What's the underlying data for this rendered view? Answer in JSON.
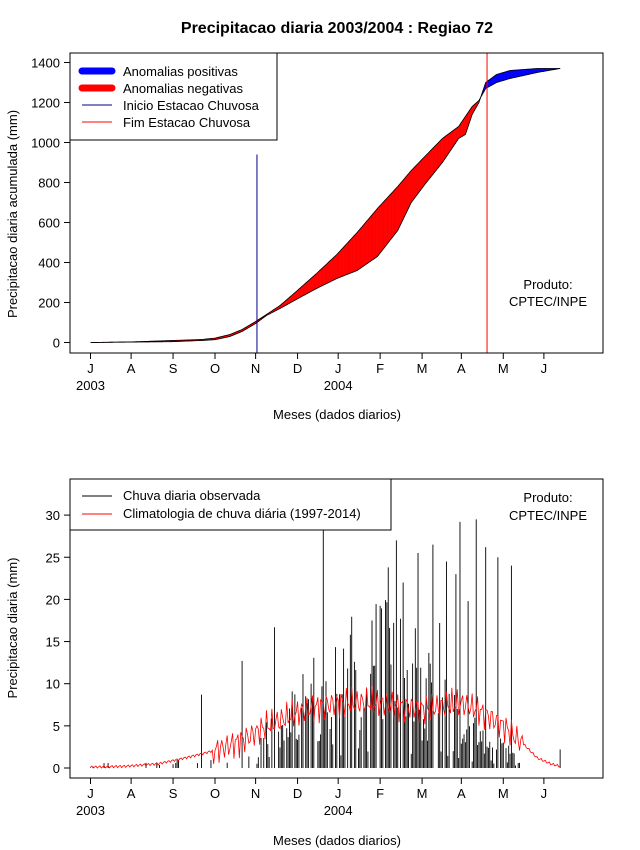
{
  "title": "Precipitacao diaria 2003/2004 : Regiao 72",
  "chart_data": [
    {
      "type": "area",
      "ylabel": "Precipitacao diaria acumulada (mm)",
      "xlabel": "Meses (dados diarios)",
      "ylim": [
        0,
        1400
      ],
      "yticks": [
        0,
        200,
        400,
        600,
        800,
        1000,
        1200,
        1400
      ],
      "month_ticks": [
        "J",
        "A",
        "S",
        "O",
        "N",
        "D",
        "J",
        "F",
        "M",
        "A",
        "M",
        "J"
      ],
      "year_labels": [
        "2003",
        "2004"
      ],
      "legend": [
        "Anomalias positivas",
        "Anomalias negativas",
        "Inicio Estacao Chuvosa",
        "Fim Estacao Chuvosa"
      ],
      "annotation": [
        "Produto:",
        "CPTEC/INPE"
      ],
      "onset_day": 123,
      "end_day": 293,
      "colors": {
        "positive": "#0000ff",
        "negative": "#ff0000",
        "onset_line": "#00008b",
        "end_line": "#ff0000"
      },
      "observed_anchors": [
        [
          0,
          0
        ],
        [
          30,
          2
        ],
        [
          60,
          4
        ],
        [
          82,
          10
        ],
        [
          92,
          14
        ],
        [
          103,
          30
        ],
        [
          112,
          55
        ],
        [
          122,
          95
        ],
        [
          130,
          135
        ],
        [
          140,
          170
        ],
        [
          152,
          215
        ],
        [
          167,
          270
        ],
        [
          182,
          320
        ],
        [
          197,
          360
        ],
        [
          212,
          430
        ],
        [
          227,
          560
        ],
        [
          237,
          700
        ],
        [
          247,
          790
        ],
        [
          260,
          900
        ],
        [
          272,
          1020
        ],
        [
          277,
          1040
        ],
        [
          282,
          1140
        ],
        [
          287,
          1200
        ],
        [
          292,
          1300
        ],
        [
          300,
          1340
        ],
        [
          310,
          1360
        ],
        [
          330,
          1370
        ],
        [
          347,
          1370
        ]
      ],
      "climatology_anchors": [
        [
          0,
          0
        ],
        [
          30,
          3
        ],
        [
          60,
          10
        ],
        [
          82,
          15
        ],
        [
          92,
          22
        ],
        [
          103,
          40
        ],
        [
          112,
          65
        ],
        [
          122,
          105
        ],
        [
          130,
          140
        ],
        [
          140,
          185
        ],
        [
          152,
          255
        ],
        [
          167,
          345
        ],
        [
          182,
          440
        ],
        [
          197,
          550
        ],
        [
          212,
          670
        ],
        [
          227,
          780
        ],
        [
          237,
          860
        ],
        [
          247,
          930
        ],
        [
          260,
          1020
        ],
        [
          272,
          1080
        ],
        [
          277,
          1130
        ],
        [
          282,
          1180
        ],
        [
          287,
          1210
        ],
        [
          292,
          1270
        ],
        [
          300,
          1300
        ],
        [
          310,
          1320
        ],
        [
          330,
          1350
        ],
        [
          347,
          1370
        ]
      ]
    },
    {
      "type": "bar",
      "ylabel": "Precipitacao diaria (mm)",
      "xlabel": "Meses (dados diarios)",
      "ylim": [
        0,
        33
      ],
      "yticks": [
        0,
        5,
        10,
        15,
        20,
        25,
        30
      ],
      "month_ticks": [
        "J",
        "A",
        "S",
        "O",
        "N",
        "D",
        "J",
        "F",
        "M",
        "A",
        "M",
        "J"
      ],
      "year_labels": [
        "2003",
        "2004"
      ],
      "legend": [
        "Chuva diaria observada",
        "Climatologia de chuva diária (1997-2014)"
      ],
      "annotation": [
        "Produto:",
        "CPTEC/INPE"
      ],
      "colors": {
        "observed": "#000000",
        "climatology": "#ff0000"
      },
      "notable_observed_days": [
        [
          82,
          8.7
        ],
        [
          112,
          12.7
        ],
        [
          136,
          16.7
        ],
        [
          163,
          10.0
        ],
        [
          172,
          28.5
        ],
        [
          190,
          11.8
        ],
        [
          208,
          17.5
        ],
        [
          220,
          23.8
        ],
        [
          226,
          27.0
        ],
        [
          231,
          22.0
        ],
        [
          242,
          25.5
        ],
        [
          253,
          26.5
        ],
        [
          258,
          17.2
        ],
        [
          263,
          24.5
        ],
        [
          270,
          23.0
        ],
        [
          273,
          29.2
        ],
        [
          279,
          19.8
        ],
        [
          285,
          29.5
        ],
        [
          292,
          26.2
        ],
        [
          301,
          25.0
        ],
        [
          311,
          24.0
        ],
        [
          347,
          2.2
        ]
      ],
      "climatology_anchors": [
        [
          0,
          0.1
        ],
        [
          25,
          0.2
        ],
        [
          50,
          0.5
        ],
        [
          70,
          1.2
        ],
        [
          85,
          1.8
        ],
        [
          100,
          2.5
        ],
        [
          115,
          3.5
        ],
        [
          130,
          5.0
        ],
        [
          145,
          6.0
        ],
        [
          160,
          7.0
        ],
        [
          175,
          7.5
        ],
        [
          190,
          7.8
        ],
        [
          205,
          7.8
        ],
        [
          220,
          7.5
        ],
        [
          235,
          7.2
        ],
        [
          250,
          7.0
        ],
        [
          265,
          7.5
        ],
        [
          275,
          7.6
        ],
        [
          285,
          7.0
        ],
        [
          295,
          6.0
        ],
        [
          305,
          5.0
        ],
        [
          315,
          3.5
        ],
        [
          322,
          2.5
        ],
        [
          330,
          1.2
        ],
        [
          340,
          0.5
        ],
        [
          347,
          0.2
        ]
      ]
    }
  ]
}
